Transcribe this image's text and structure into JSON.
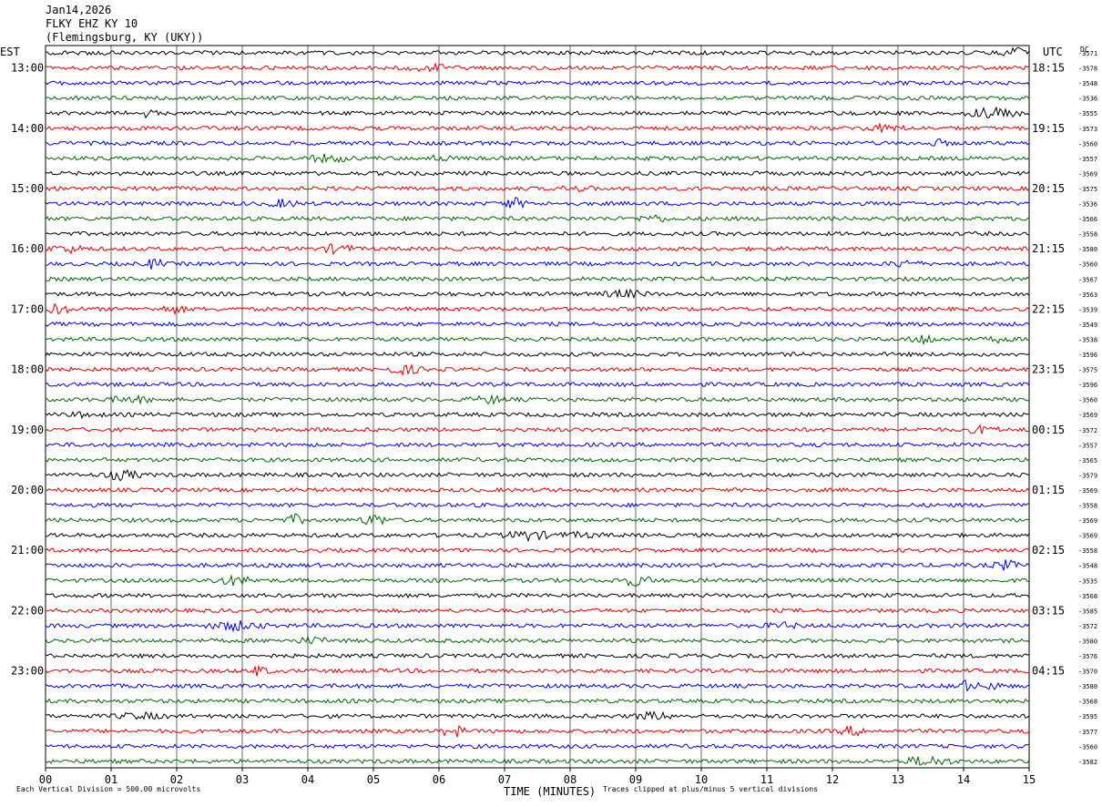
{
  "header": {
    "date": "Jan14,2026",
    "station": "FLKY EHZ KY 10",
    "location": "(Flemingsburg, KY (UKY))"
  },
  "left_axis_label": "EST",
  "right_axis_label": "UTC",
  "top_right_label": "DC",
  "chart_data": {
    "type": "line",
    "title": "FLKY EHZ KY 10",
    "xlabel": "TIME (MINUTES)",
    "xlim": [
      0,
      15
    ],
    "x_ticks": [
      "00",
      "01",
      "02",
      "03",
      "04",
      "05",
      "06",
      "07",
      "08",
      "09",
      "10",
      "11",
      "12",
      "13",
      "14",
      "15"
    ],
    "rows_per_hour": 4,
    "row_minutes": 15,
    "trace_colors": [
      "#000000",
      "#dd0000",
      "#0000dd",
      "#006600"
    ],
    "left_hour_labels": [
      "13:00",
      "14:00",
      "15:00",
      "16:00",
      "17:00",
      "18:00",
      "19:00",
      "20:00",
      "21:00",
      "22:00",
      "23:00"
    ],
    "right_hour_labels": [
      "18:15",
      "19:15",
      "20:15",
      "21:15",
      "22:15",
      "23:15",
      "00:15",
      "01:15",
      "02:15",
      "03:15",
      "04:15"
    ],
    "dc_offsets": [
      "-3571",
      "-3578",
      "-3548",
      "-3536",
      "-3555",
      "-3573",
      "-3560",
      "-3557",
      "-3569",
      "-3575",
      "-3536",
      "-3566",
      "-3558",
      "-3580",
      "-3560",
      "-3567",
      "-3563",
      "-3539",
      "-3549",
      "-3538",
      "-3596",
      "-3575",
      "-3596",
      "-3560",
      "-3569",
      "-3572",
      "-3557",
      "-3565",
      "-3579",
      "-3569",
      "-3558",
      "-3569",
      "-3569",
      "-3558",
      "-3548",
      "-3535",
      "-3568",
      "-3585",
      "-3572",
      "-3580",
      "-3576",
      "-3570",
      "-3580",
      "-3568",
      "-3595",
      "-3577",
      "-3560",
      "-3582"
    ]
  },
  "footer": {
    "scale_note": "Each Vertical Division =  500.00 microvolts",
    "clip_note": "Traces clipped at plus/minus 5 vertical divisions"
  }
}
